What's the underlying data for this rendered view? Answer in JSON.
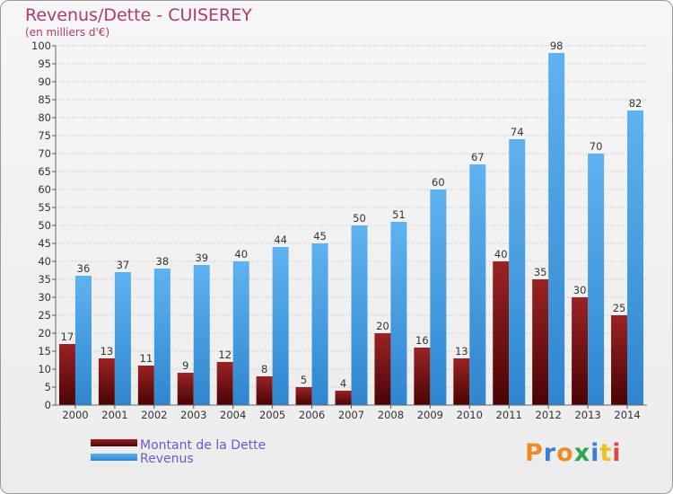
{
  "chart_data": {
    "type": "bar",
    "title": "Revenus/Dette - CUISEREY",
    "subtitle": "(en milliers d'€)",
    "categories": [
      "2000",
      "2001",
      "2002",
      "2003",
      "2004",
      "2005",
      "2006",
      "2007",
      "2008",
      "2009",
      "2010",
      "2011",
      "2012",
      "2013",
      "2014"
    ],
    "series": [
      {
        "name": "Montant de la Dette",
        "values": [
          17,
          13,
          11,
          9,
          12,
          8,
          5,
          4,
          20,
          16,
          13,
          40,
          35,
          30,
          25
        ],
        "color": "#7a1010"
      },
      {
        "name": "Revenus",
        "values": [
          36,
          37,
          38,
          39,
          40,
          44,
          45,
          50,
          51,
          60,
          67,
          74,
          98,
          70,
          82
        ],
        "color": "#4fa3e6"
      }
    ],
    "ylim": [
      0,
      100
    ],
    "yticks": [
      0,
      5,
      10,
      15,
      20,
      25,
      30,
      35,
      40,
      45,
      50,
      55,
      60,
      65,
      70,
      75,
      80,
      85,
      90,
      95,
      100
    ],
    "grid": "dotted horizontal",
    "legend": "bottom-left"
  },
  "logo": {
    "text": "Proxiti",
    "colors": [
      "#f08a24",
      "#3a7fd4",
      "#f08a24",
      "#2aa84a",
      "#3a7fd4",
      "#f0c020",
      "#e04848"
    ]
  }
}
